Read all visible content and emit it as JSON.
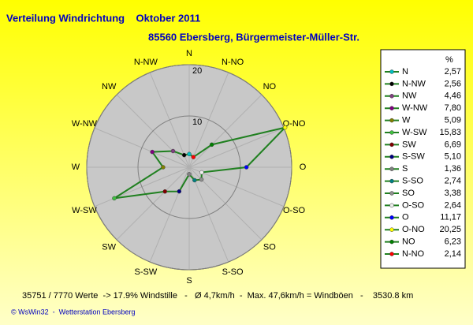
{
  "chart_data": {
    "type": "radar",
    "title": "Verteilung Windrichtung    Oktober 2011",
    "subtitle": "85560 Ebersberg, Bürgermeister-Müller-Str.",
    "legend_header": "%",
    "categories": [
      "N",
      "N-NW",
      "NW",
      "W-NW",
      "W",
      "W-SW",
      "SW",
      "S-SW",
      "S",
      "S-SO",
      "SO",
      "O-SO",
      "O",
      "O-NO",
      "NO",
      "N-NO"
    ],
    "values": [
      2.57,
      2.56,
      4.46,
      7.8,
      5.09,
      15.83,
      6.69,
      5.1,
      1.36,
      2.74,
      3.38,
      2.64,
      11.17,
      20.25,
      6.23,
      2.14
    ],
    "value_labels": [
      "2,57",
      "2,56",
      "4,46",
      "7,80",
      "5,09",
      "15,83",
      "6,69",
      "5,10",
      "1,36",
      "2,74",
      "3,38",
      "2,64",
      "11,17",
      "20,25",
      "6,23",
      "2,14"
    ],
    "colors": [
      "#00c0c0",
      "#000000",
      "#804080",
      "#800080",
      "#808000",
      "#40c040",
      "#800000",
      "#000080",
      "#808080",
      "#008080",
      "#909090",
      "#f0f0f0",
      "#0000ff",
      "#ffff00",
      "#008000",
      "#ff0000"
    ],
    "line_color": "#208020",
    "ylim": [
      0,
      20
    ],
    "yticks": [
      10,
      20
    ],
    "footer": "35751 / 7770 Werte  -> 17.9% Windstille   -   Ø 4,7km/h  -  Max. 47,6km/h = Windböen   -    3530.8 km",
    "credit": "© WsWin32  -  Wetterstation Ebersberg"
  }
}
